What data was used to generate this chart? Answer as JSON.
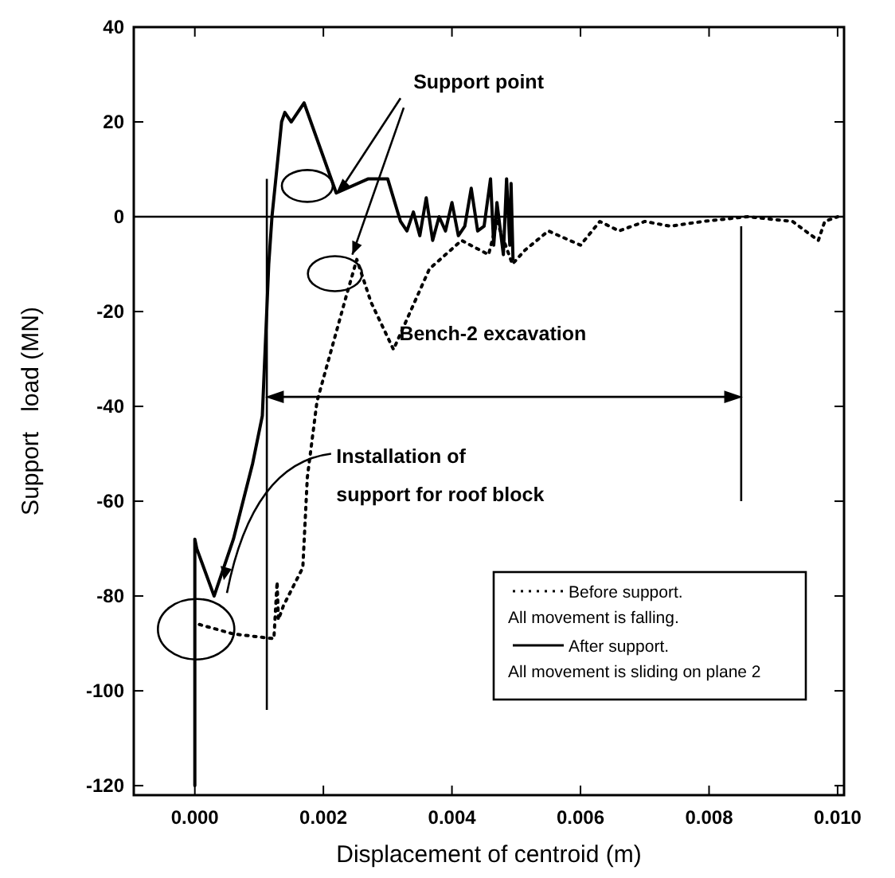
{
  "chart_data": {
    "type": "line",
    "xlabel": "Displacement of centroid (m)",
    "ylabel": "Support   load (MN)",
    "xlim": [
      -0.00095,
      0.0101
    ],
    "ylim": [
      -122,
      40
    ],
    "xticks": [
      {
        "value": 0,
        "label": "0.000"
      },
      {
        "value": 0.002,
        "label": "0.002"
      },
      {
        "value": 0.004,
        "label": "0.004"
      },
      {
        "value": 0.006,
        "label": "0.006"
      },
      {
        "value": 0.008,
        "label": "0.008"
      },
      {
        "value": 0.01,
        "label": "0.010"
      }
    ],
    "yticks": [
      -120,
      -100,
      -80,
      -60,
      -40,
      -20,
      0,
      20,
      40
    ],
    "grid": false,
    "legend": "bottom right",
    "ref_lines": [
      {
        "axis": "x",
        "value": 0.00112,
        "color": "#000000",
        "line_style": "solid"
      },
      {
        "axis": "x",
        "value": 0.0085,
        "color": "#000000",
        "line_style": "solid"
      },
      {
        "axis": "y",
        "value": 0,
        "color": "#000000",
        "line_style": "solid"
      }
    ],
    "series": [
      {
        "name": "Before support.",
        "color": "#000000",
        "line_style": "dotted",
        "x": [
          7e-05,
          0.0006,
          0.00123,
          0.00128,
          0.0013,
          0.00138,
          0.00168,
          0.00175,
          0.0019,
          0.00235,
          0.00252,
          0.00274,
          0.00309,
          0.00365,
          0.00415,
          0.00457,
          0.0047,
          0.00494,
          0.00514,
          0.0055,
          0.006,
          0.0063,
          0.0066,
          0.007,
          0.0074,
          0.0079,
          0.0086,
          0.0093,
          0.0097,
          0.0098,
          0.01
        ],
        "values": [
          -86,
          -88,
          -89,
          -77,
          -85,
          -82,
          -74,
          -55,
          -39,
          -17,
          -9,
          -18,
          -28,
          -11,
          -5,
          -8,
          -1,
          -10,
          -7,
          -3,
          -6,
          -1,
          -3,
          -1,
          -2,
          -1,
          0,
          -1,
          -5,
          -1,
          0
        ]
      },
      {
        "name": "After support.",
        "color": "#000000",
        "line_style": "solid",
        "x": [
          0,
          0,
          3e-05,
          0.0003,
          0.00035,
          0.0006,
          0.0009,
          0.00105,
          0.00115,
          0.0012,
          0.00135,
          0.0014,
          0.0015,
          0.0017,
          0.0022,
          0.0027,
          0.003,
          0.0032,
          0.0033,
          0.0034,
          0.0035,
          0.0036,
          0.0037,
          0.0038,
          0.0039,
          0.004,
          0.0041,
          0.0042,
          0.0043,
          0.0044,
          0.0045,
          0.0046,
          0.00465,
          0.0047,
          0.0048,
          0.00485,
          0.0049,
          0.00492,
          0.00495
        ],
        "values": [
          -120,
          -68,
          -70,
          -80,
          -78,
          -68,
          -52,
          -42,
          -10,
          0,
          20,
          22,
          20,
          24,
          5,
          8,
          8,
          -1,
          -3,
          1,
          -4,
          4,
          -5,
          0,
          -3,
          3,
          -4,
          -2,
          6,
          -3,
          -2,
          8,
          -6,
          3,
          -8,
          8,
          -6,
          7,
          -9
        ]
      }
    ],
    "annotations": [
      {
        "text": "Support point",
        "x": 0.0022,
        "y": 5
      },
      "Bench-2 excavation",
      {
        "text": "Installation of",
        "x": 0.00045,
        "y": -78
      },
      "support for roof block",
      "All movement is falling.",
      "All movement is sliding on plane 2"
    ]
  }
}
